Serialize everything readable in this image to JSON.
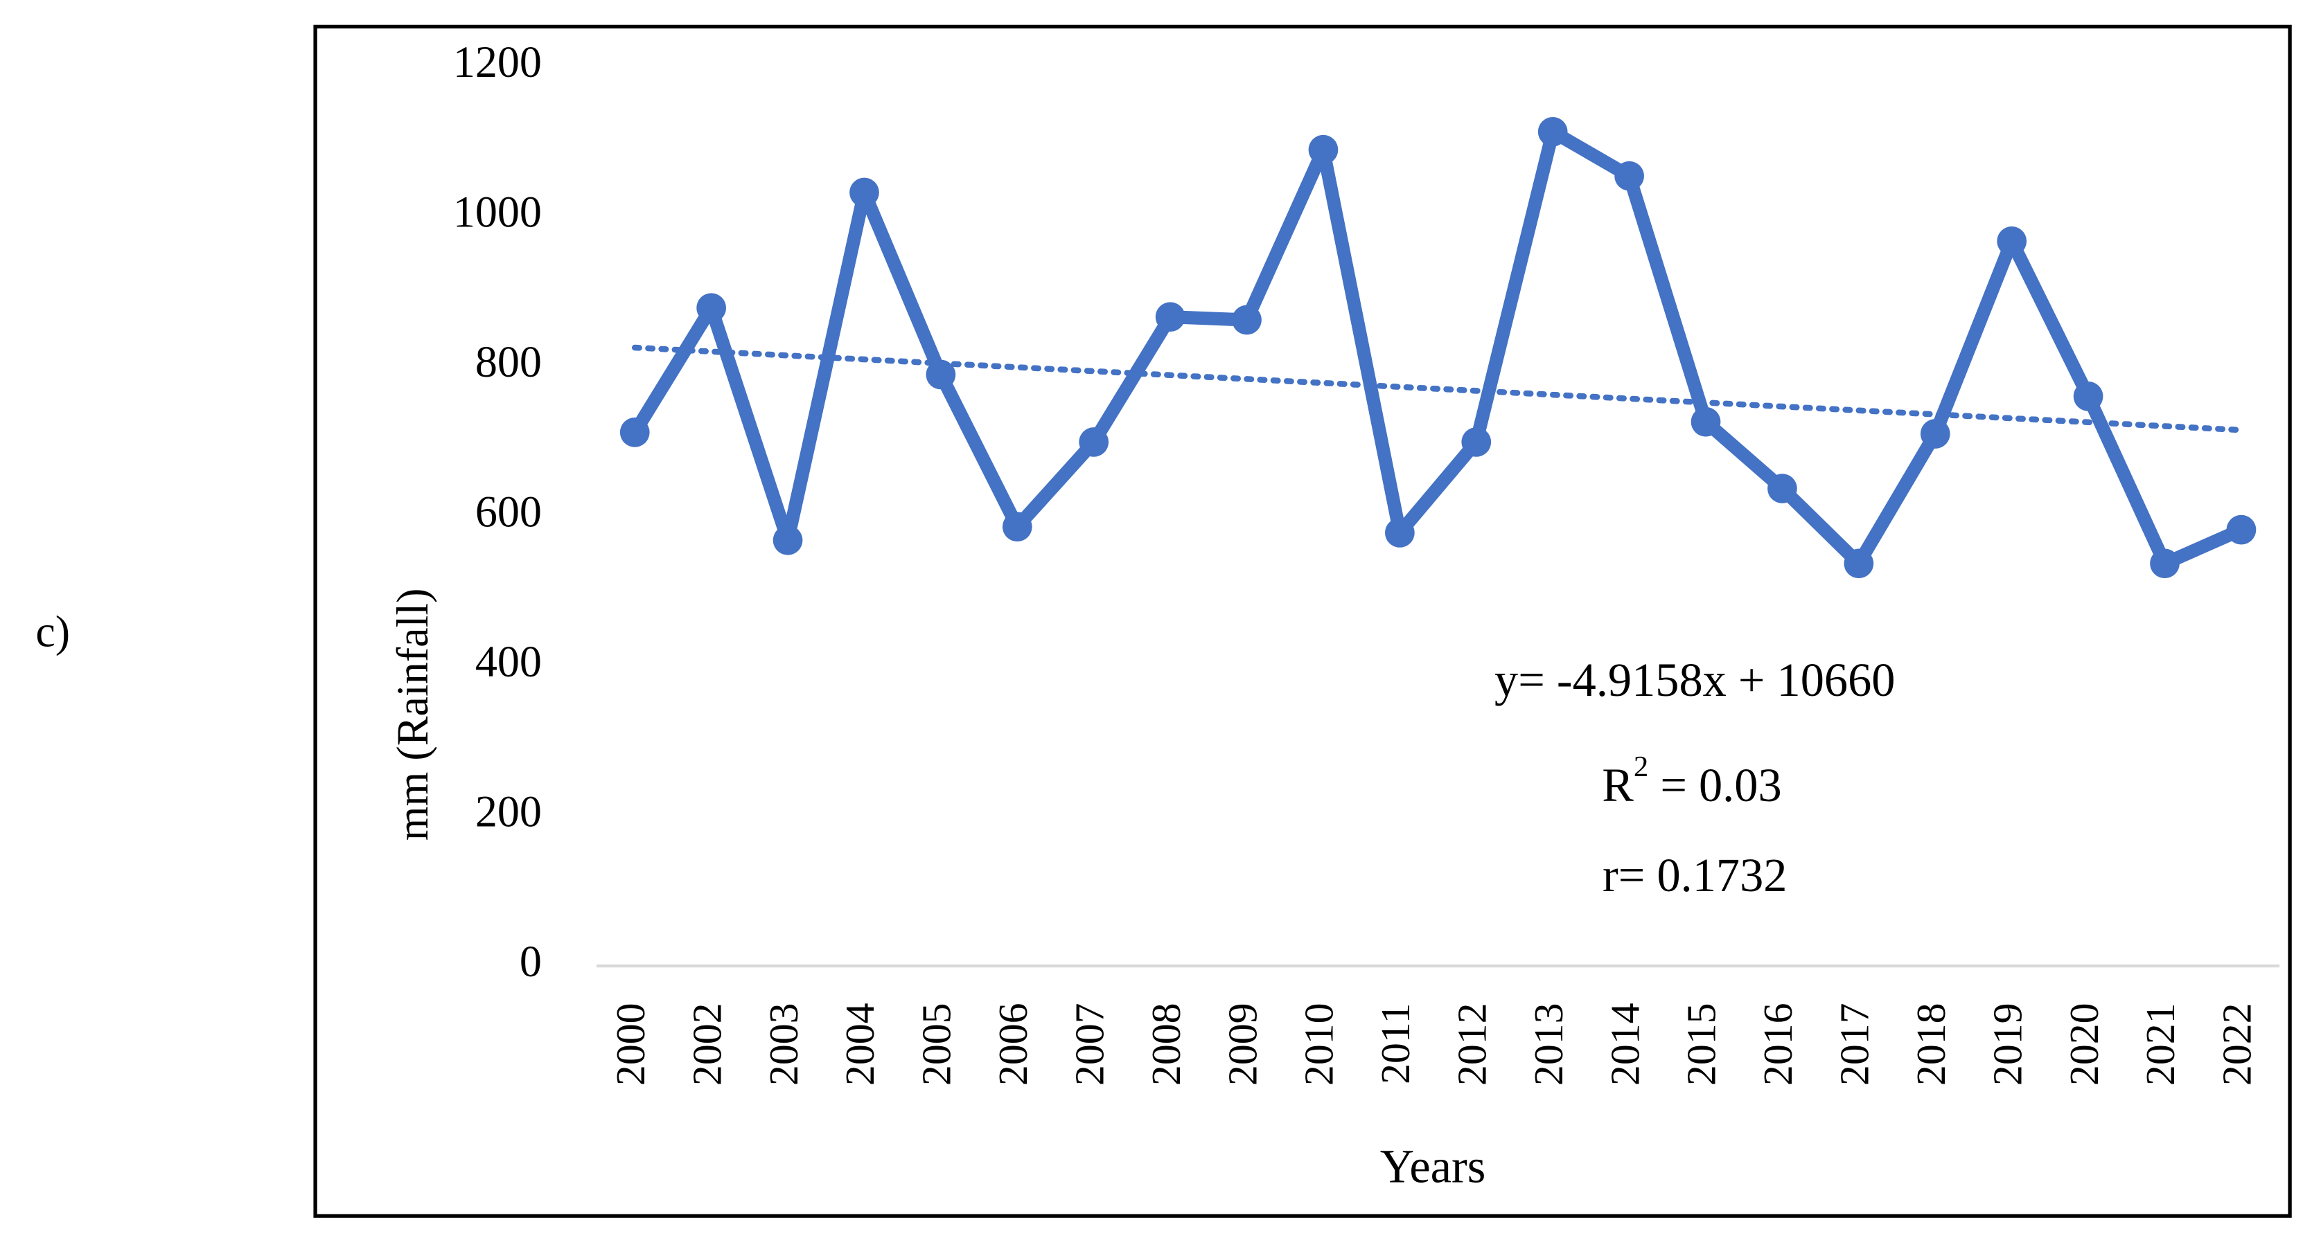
{
  "chart_data": {
    "type": "line",
    "panel_label": "c)",
    "ylabel": "mm (Rainfall)",
    "xlabel": "Years",
    "categories": [
      "2000",
      "2002",
      "2003",
      "2004",
      "2005",
      "2006",
      "2007",
      "2008",
      "2009",
      "2010",
      "2011",
      "2012",
      "2013",
      "2014",
      "2015",
      "2016",
      "2017",
      "2018",
      "2019",
      "2020",
      "2021",
      "2022"
    ],
    "values": [
      712,
      878,
      568,
      1032,
      789,
      586,
      699,
      866,
      862,
      1089,
      578,
      699,
      1113,
      1054,
      726,
      637,
      537,
      710,
      967,
      760,
      537,
      582
    ],
    "color": "#4472c4",
    "trendline": {
      "start": 825,
      "end": 715,
      "style": "dotted"
    },
    "ylim": [
      0,
      1200
    ],
    "yticks": [
      0,
      200,
      400,
      600,
      800,
      1000,
      1200
    ],
    "grid": false,
    "annotations": {
      "equation": "y= -4.9158x + 10660",
      "r2": {
        "base": "R",
        "sup": "2",
        "rest": " = 0.03"
      },
      "r": "r= 0.1732"
    }
  }
}
